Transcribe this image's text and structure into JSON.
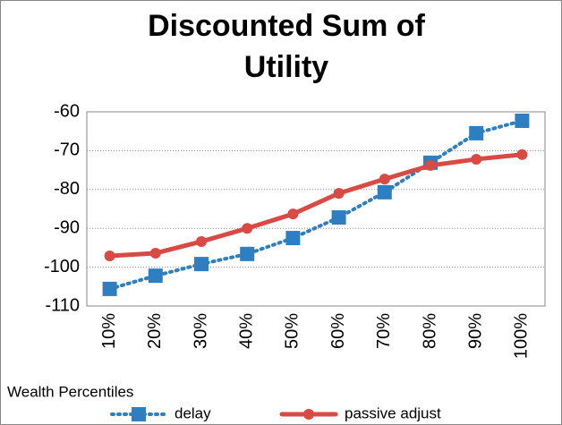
{
  "chart_data": {
    "type": "line",
    "title": "Discounted Sum of Utility",
    "x_label": "Wealth Percentiles",
    "categories": [
      "10%",
      "20%",
      "30%",
      "40%",
      "50%",
      "60%",
      "70%",
      "80%",
      "90%",
      "100%"
    ],
    "series": [
      {
        "name": "delay",
        "color": "#2e7fc1",
        "style": "dotted",
        "marker": "square",
        "values": [
          -105.6,
          -102.2,
          -99.2,
          -96.6,
          -92.5,
          -87.2,
          -80.7,
          -73.1,
          -65.5,
          -62.3
        ]
      },
      {
        "name": "passive adjust",
        "color": "#d94a44",
        "style": "solid",
        "marker": "circle",
        "values": [
          -97.1,
          -96.4,
          -93.4,
          -90.0,
          -86.3,
          -81.0,
          -77.3,
          -73.8,
          -72.2,
          -71.0
        ]
      }
    ],
    "ylim": [
      -110,
      -60
    ],
    "yticks": [
      -110,
      -100,
      -90,
      -80,
      -70,
      -60
    ],
    "grid": true
  }
}
